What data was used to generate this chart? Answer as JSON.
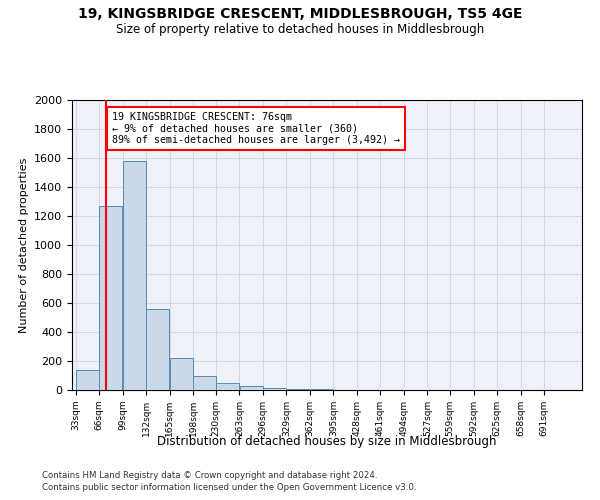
{
  "title": "19, KINGSBRIDGE CRESCENT, MIDDLESBROUGH, TS5 4GE",
  "subtitle": "Size of property relative to detached houses in Middlesbrough",
  "xlabel": "Distribution of detached houses by size in Middlesbrough",
  "ylabel": "Number of detached properties",
  "footnote1": "Contains HM Land Registry data © Crown copyright and database right 2024.",
  "footnote2": "Contains public sector information licensed under the Open Government Licence v3.0.",
  "annotation_title": "19 KINGSBRIDGE CRESCENT: 76sqm",
  "annotation_line1": "← 9% of detached houses are smaller (360)",
  "annotation_line2": "89% of semi-detached houses are larger (3,492) →",
  "property_size": 76,
  "bar_color": "#c9d9e8",
  "bar_edge_color": "#5a8ab0",
  "marker_color": "red",
  "annotation_box_color": "red",
  "categories": [
    "33sqm",
    "66sqm",
    "99sqm",
    "132sqm",
    "165sqm",
    "198sqm",
    "230sqm",
    "263sqm",
    "296sqm",
    "329sqm",
    "362sqm",
    "395sqm",
    "428sqm",
    "461sqm",
    "494sqm",
    "527sqm",
    "559sqm",
    "592sqm",
    "625sqm",
    "658sqm",
    "691sqm"
  ],
  "values": [
    135,
    1270,
    1580,
    560,
    220,
    95,
    45,
    25,
    15,
    10,
    5,
    2,
    1,
    0,
    0,
    0,
    0,
    0,
    0,
    0,
    0
  ],
  "bin_edges": [
    33,
    66,
    99,
    132,
    165,
    198,
    230,
    263,
    296,
    329,
    362,
    395,
    428,
    461,
    494,
    527,
    559,
    592,
    625,
    658,
    691,
    724
  ],
  "ylim": [
    0,
    2000
  ],
  "yticks": [
    0,
    200,
    400,
    600,
    800,
    1000,
    1200,
    1400,
    1600,
    1800,
    2000
  ],
  "grid_color": "#d0d8e8",
  "background_color": "#eef2f8",
  "fig_width": 6.0,
  "fig_height": 5.0,
  "dpi": 100
}
